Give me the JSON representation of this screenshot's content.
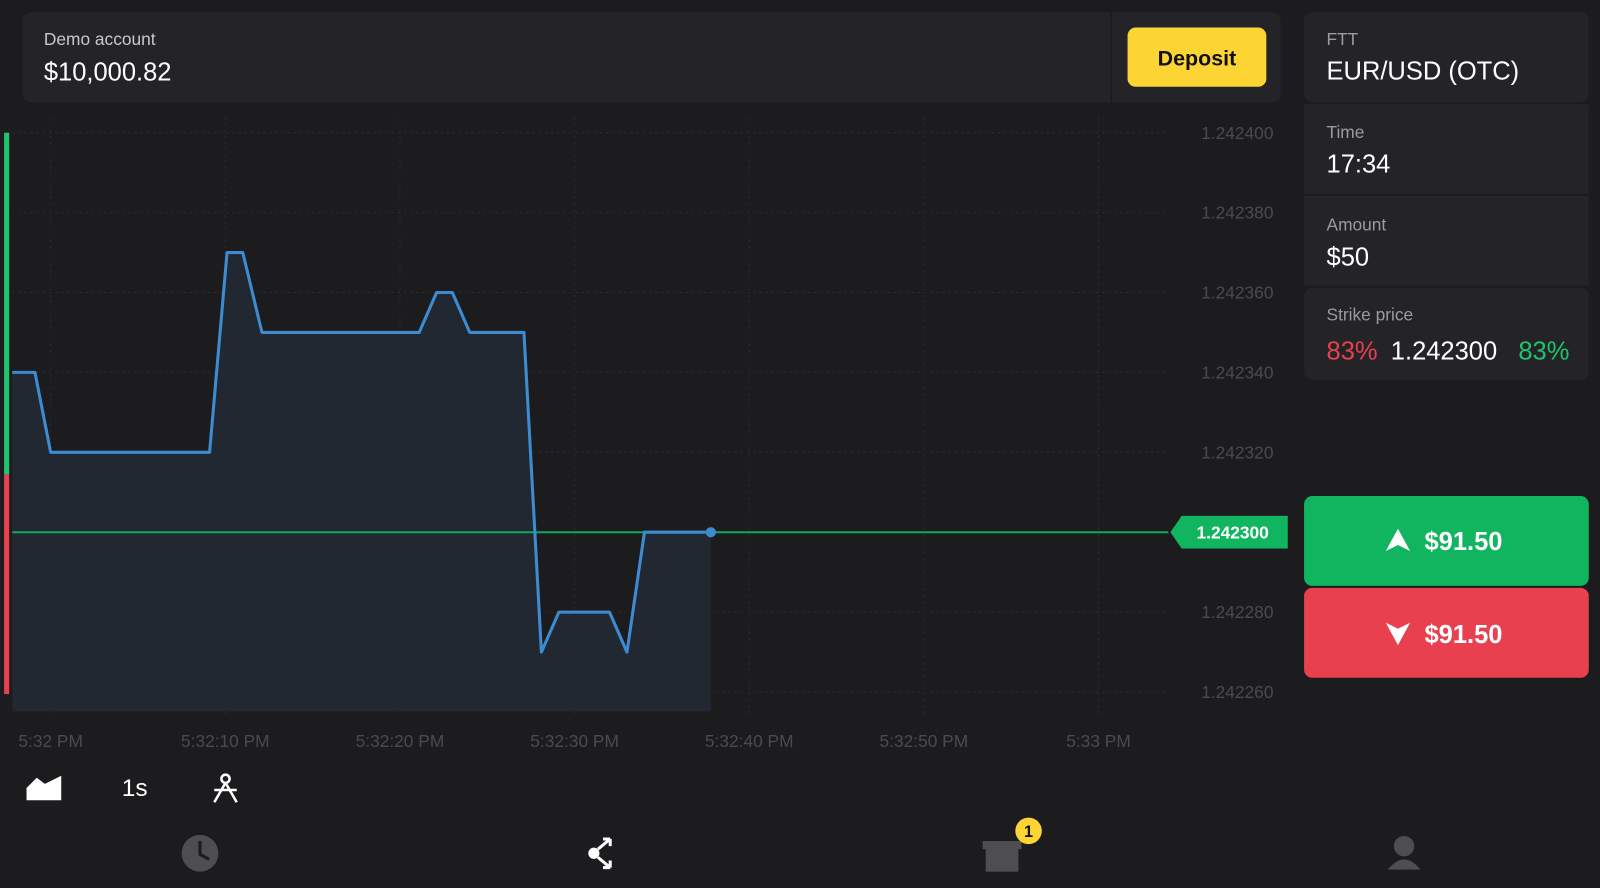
{
  "header": {
    "account_label": "Demo account",
    "balance": "$10,000.82",
    "deposit": "Deposit"
  },
  "panel": {
    "asset_label": "FTT",
    "asset": "EUR/USD (OTC)",
    "time_label": "Time",
    "time": "17:34",
    "amount_label": "Amount",
    "amount": "$50",
    "strike_label": "Strike price",
    "strike_low_pct": "83%",
    "strike": "1.242300",
    "strike_high_pct": "83%"
  },
  "buttons": {
    "up": "$91.50",
    "down": "$91.50"
  },
  "toolbar": {
    "interval": "1s"
  },
  "nav": {
    "badge": "1"
  },
  "chart_data": {
    "type": "line",
    "color": "#3d8bd0",
    "x": [
      -2.2,
      -0.9,
      0,
      9.1,
      10.1,
      11.0,
      12.1,
      21.1,
      22.1,
      23.0,
      24.0,
      27.1,
      28.1,
      29.1,
      32.0,
      33.0,
      34.0,
      37.8
    ],
    "values": [
      1.24234,
      1.24234,
      1.24232,
      1.24232,
      1.24237,
      1.24237,
      1.24235,
      1.24235,
      1.24236,
      1.24236,
      1.24235,
      1.24235,
      1.24227,
      1.24228,
      1.24228,
      1.24227,
      1.2423,
      1.2423
    ],
    "xlim": [
      -2.2,
      64
    ],
    "xticks": [
      {
        "value": 0,
        "label": "5:32 PM"
      },
      {
        "value": 10,
        "label": "5:32:10 PM"
      },
      {
        "value": 20,
        "label": "5:32:20 PM"
      },
      {
        "value": 30,
        "label": "5:32:30 PM"
      },
      {
        "value": 40,
        "label": "5:32:40 PM"
      },
      {
        "value": 50,
        "label": "5:32:50 PM"
      },
      {
        "value": 60,
        "label": "5:33 PM"
      }
    ],
    "ylim": [
      1.24226,
      1.2424
    ],
    "yticks": [
      {
        "value": 1.2424,
        "label": "1.242400"
      },
      {
        "value": 1.24238,
        "label": "1.242380"
      },
      {
        "value": 1.24236,
        "label": "1.242360"
      },
      {
        "value": 1.24234,
        "label": "1.242340"
      },
      {
        "value": 1.24232,
        "label": "1.242320"
      },
      {
        "value": 1.2423,
        "label": "1.242300"
      },
      {
        "value": 1.24228,
        "label": "1.242280"
      },
      {
        "value": 1.24226,
        "label": "1.242260"
      }
    ],
    "current": {
      "value": 1.2423,
      "label": "1.242300"
    },
    "grid": true
  }
}
